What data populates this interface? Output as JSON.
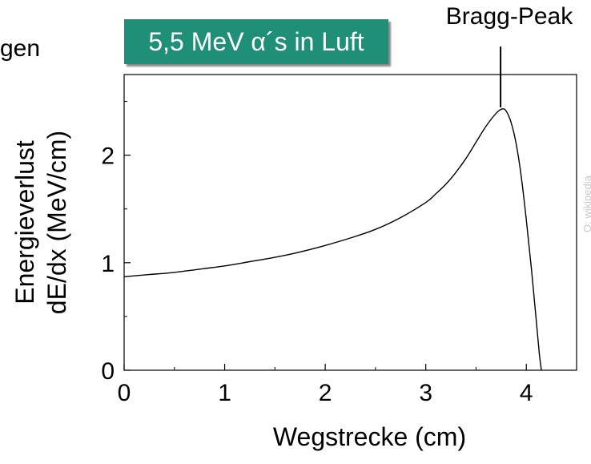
{
  "left_fragment": "gen",
  "credit": "Q: wikipedia",
  "chart_data": {
    "type": "line",
    "title": "5,5 MeV α´s in Luft",
    "xlabel": "Wegstrecke (cm)",
    "ylabel_line1": "Energieverlust",
    "ylabel_line2": "dE/dx (MeV/cm)",
    "xlim": [
      0,
      4.5
    ],
    "ylim": [
      0,
      2.75
    ],
    "x_ticks": [
      0,
      1,
      2,
      3,
      4
    ],
    "y_ticks": [
      0,
      1,
      2
    ],
    "grid": false,
    "annotation": {
      "text": "Bragg-Peak",
      "x": 3.76,
      "y": 2.43
    },
    "series": [
      {
        "color": "#000000",
        "x": [
          0,
          0.25,
          0.5,
          0.75,
          1.0,
          1.25,
          1.5,
          1.75,
          2.0,
          2.25,
          2.5,
          2.75,
          3.0,
          3.1,
          3.2,
          3.3,
          3.4,
          3.5,
          3.6,
          3.7,
          3.76,
          3.8,
          3.85,
          3.9,
          3.95,
          4.0,
          4.05,
          4.1,
          4.13,
          4.15
        ],
        "y": [
          0.87,
          0.89,
          0.91,
          0.94,
          0.97,
          1.01,
          1.05,
          1.1,
          1.16,
          1.23,
          1.31,
          1.42,
          1.56,
          1.64,
          1.73,
          1.84,
          1.97,
          2.12,
          2.27,
          2.39,
          2.43,
          2.41,
          2.3,
          2.1,
          1.8,
          1.4,
          0.95,
          0.45,
          0.15,
          0
        ]
      }
    ]
  }
}
